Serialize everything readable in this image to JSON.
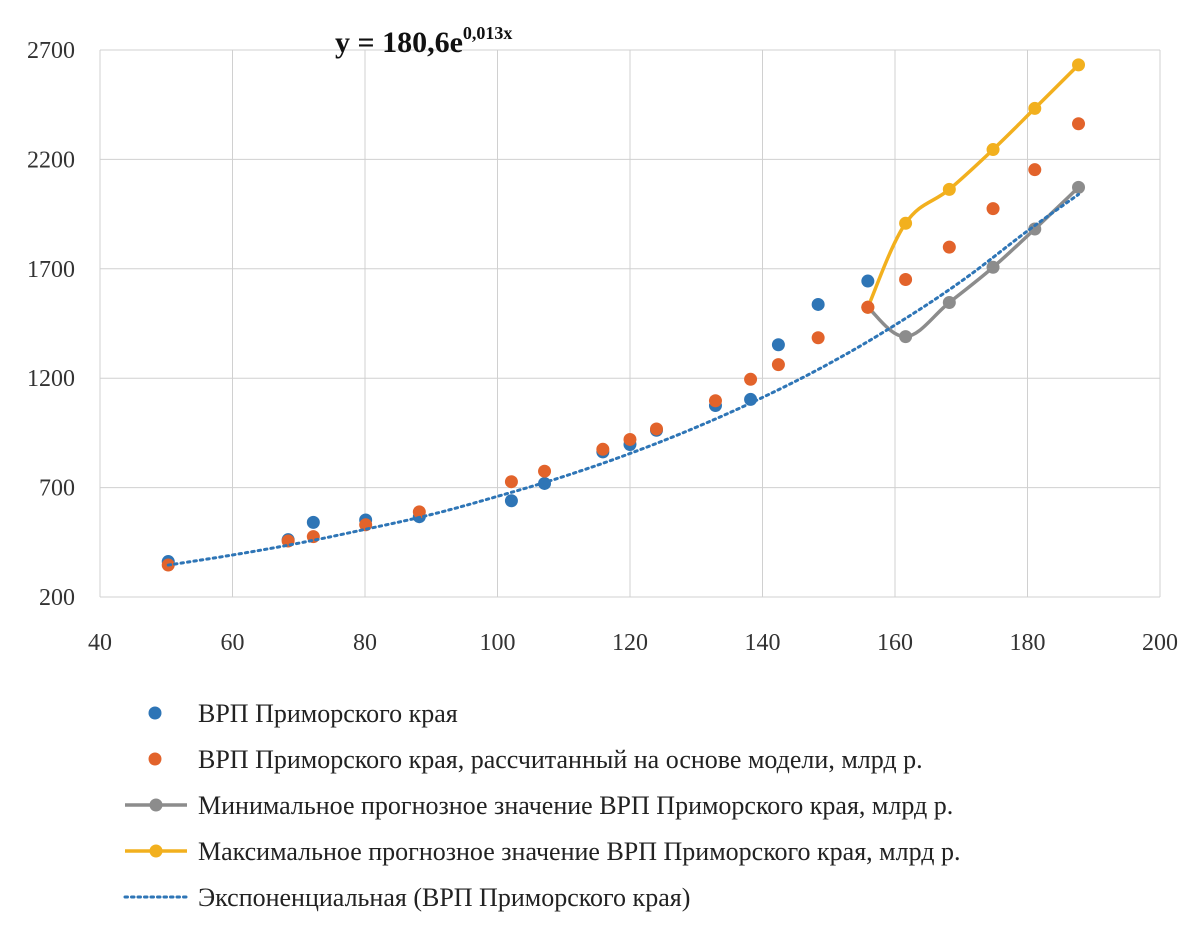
{
  "chart_data": {
    "type": "scatter",
    "equation": {
      "base": "y = 180,6e",
      "exponent": "0,013x"
    },
    "x_ticks": [
      "40",
      "60",
      "80",
      "100",
      "120",
      "140",
      "160",
      "180",
      "200"
    ],
    "y_ticks": [
      "200",
      "700",
      "1200",
      "1700",
      "2200",
      "2700"
    ],
    "xlim": [
      40,
      200
    ],
    "ylim": [
      200,
      2700
    ],
    "grid": true,
    "legend_position": "bottom",
    "colors": {
      "blue": "#2E75B6",
      "orange": "#E2632B",
      "gray": "#8C8C8C",
      "gold": "#F2B01E",
      "trend": "#2E75B6",
      "grid": "#D0D0D0"
    },
    "series": [
      {
        "name": "ВРП Приморского края",
        "kind": "points",
        "color": "#2E75B6",
        "points": [
          [
            50.3,
            362
          ],
          [
            68.4,
            462
          ],
          [
            72.2,
            541
          ],
          [
            80.1,
            552
          ],
          [
            88.2,
            567
          ],
          [
            102.1,
            640
          ],
          [
            107.1,
            719
          ],
          [
            115.9,
            863
          ],
          [
            120,
            897
          ],
          [
            124,
            962
          ],
          [
            132.9,
            1075
          ],
          [
            138.2,
            1103
          ],
          [
            142.4,
            1353
          ],
          [
            148.4,
            1537
          ],
          [
            155.9,
            1644
          ]
        ]
      },
      {
        "name": "ВРП Приморского края, рассчитанный на основе модели, млрд р.",
        "kind": "points",
        "color": "#E2632B",
        "points": [
          [
            50.3,
            346
          ],
          [
            68.4,
            456
          ],
          [
            72.2,
            476
          ],
          [
            80.1,
            530
          ],
          [
            88.2,
            589
          ],
          [
            102.1,
            727
          ],
          [
            107.1,
            775
          ],
          [
            115.9,
            875
          ],
          [
            120,
            920
          ],
          [
            124,
            968
          ],
          [
            132.9,
            1097
          ],
          [
            138.2,
            1195
          ],
          [
            142.4,
            1262
          ],
          [
            148.4,
            1385
          ],
          [
            155.9,
            1524
          ],
          [
            161.6,
            1651
          ],
          [
            168.2,
            1799
          ],
          [
            174.8,
            1975
          ],
          [
            181.1,
            2153
          ],
          [
            187.7,
            2363
          ]
        ]
      },
      {
        "name": "Минимальное прогнозное значение ВРП  Приморского края, млрд р.",
        "kind": "line",
        "color": "#8C8C8C",
        "points": [
          [
            155.9,
            1524
          ],
          [
            161.6,
            1390
          ],
          [
            168.2,
            1546
          ],
          [
            174.8,
            1707
          ],
          [
            181.1,
            1882
          ],
          [
            187.7,
            2072
          ]
        ]
      },
      {
        "name": "Максимальное прогнозное значение ВРП Приморского края, млрд р.",
        "kind": "line",
        "color": "#F2B01E",
        "points": [
          [
            155.9,
            1524
          ],
          [
            161.6,
            1908
          ],
          [
            168.2,
            2063
          ],
          [
            174.8,
            2245
          ],
          [
            181.1,
            2433
          ],
          [
            187.7,
            2632
          ]
        ]
      },
      {
        "name": "Экспоненциальная (ВРП Приморского края)",
        "kind": "trend",
        "color": "#2E75B6",
        "points": [
          [
            50.3,
            346
          ],
          [
            60,
            392
          ],
          [
            70,
            446
          ],
          [
            80,
            509
          ],
          [
            90,
            577
          ],
          [
            100,
            660
          ],
          [
            110,
            751
          ],
          [
            120,
            856
          ],
          [
            130,
            976
          ],
          [
            140,
            1112
          ],
          [
            150,
            1266
          ],
          [
            160,
            1443
          ],
          [
            170,
            1643
          ],
          [
            180,
            1873
          ],
          [
            187.7,
            2040
          ]
        ]
      }
    ]
  }
}
